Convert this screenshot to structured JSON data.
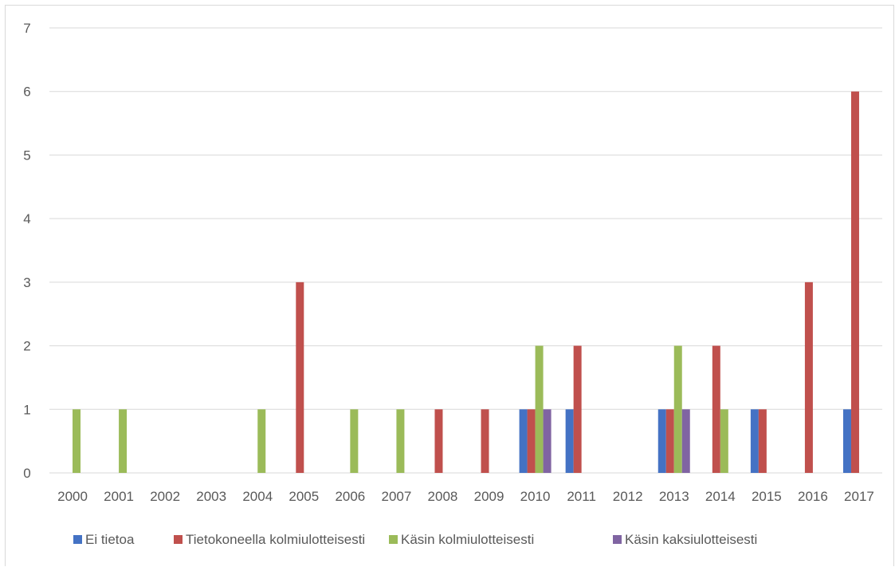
{
  "chart_data": {
    "type": "bar",
    "title": "",
    "xlabel": "",
    "ylabel": "",
    "ylim": [
      0,
      7
    ],
    "yticks": [
      "0",
      "1",
      "2",
      "3",
      "4",
      "5",
      "6",
      "7"
    ],
    "grid": true,
    "legend_position": "bottom",
    "categories": [
      "2000",
      "2001",
      "2002",
      "2003",
      "2004",
      "2005",
      "2006",
      "2007",
      "2008",
      "2009",
      "2010",
      "2011",
      "2012",
      "2013",
      "2014",
      "2015",
      "2016",
      "2017"
    ],
    "series": [
      {
        "name": "Ei tietoa",
        "color": "#4472c4",
        "values": [
          0,
          0,
          0,
          0,
          0,
          0,
          0,
          0,
          0,
          0,
          1,
          1,
          0,
          1,
          0,
          1,
          0,
          1
        ]
      },
      {
        "name": "Tietokoneella kolmiulotteisesti",
        "color": "#c0504d",
        "values": [
          0,
          0,
          0,
          0,
          0,
          3,
          0,
          0,
          1,
          1,
          1,
          2,
          0,
          1,
          2,
          1,
          3,
          6
        ]
      },
      {
        "name": "Käsin kolmiulotteisesti",
        "color": "#9bbb59",
        "values": [
          1,
          1,
          0,
          0,
          1,
          0,
          1,
          1,
          0,
          0,
          2,
          0,
          0,
          2,
          1,
          0,
          0,
          0
        ]
      },
      {
        "name": "Käsin kaksiulotteisesti",
        "color": "#8064a2",
        "values": [
          0,
          0,
          0,
          0,
          0,
          0,
          0,
          0,
          0,
          0,
          1,
          0,
          0,
          1,
          0,
          0,
          0,
          0
        ]
      }
    ]
  }
}
